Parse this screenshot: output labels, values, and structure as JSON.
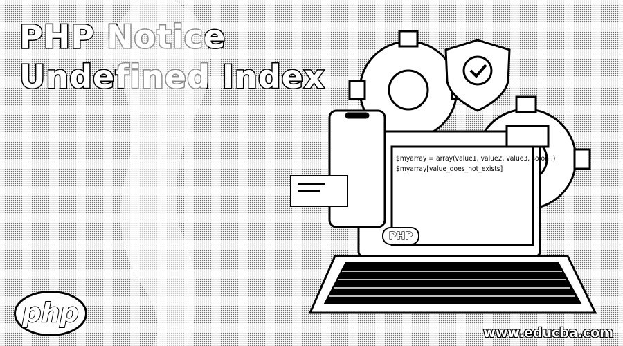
{
  "banner": {
    "title_line1": "PHP Notice",
    "title_line2": "Undefined Index"
  },
  "code_panel": {
    "line1": "$myarray = array(value1, value2, value3, so on..)",
    "line2": "$myarray[value_does_not_exists]"
  },
  "php_tag": "PHP",
  "php_logo": "php",
  "website": "www.educba.com",
  "colors": {
    "ink": "#000000",
    "paper": "#ffffff"
  }
}
